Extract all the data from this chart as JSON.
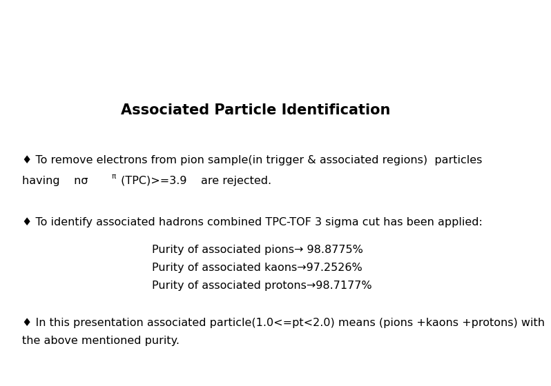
{
  "title": "Associated Particle Identification",
  "title_fontsize": 15,
  "title_fontweight": "bold",
  "background_color": "#ffffff",
  "text_color": "#000000",
  "bullet1_line1": "♦ To remove electrons from pion sample(in trigger & associated regions)  particles",
  "bullet1_line2_part1": "having    nσ",
  "bullet1_line2_sup": "π",
  "bullet1_line2_part2": " (TPC)>=3.9    are rejected.",
  "bullet2": "♦ To identify associated hadrons combined TPC-TOF 3 sigma cut has been applied:",
  "purity1": "Purity of associated pions→ 98.8775%",
  "purity2": "Purity of associated kaons→97.2526%",
  "purity3": "Purity of associated protons→98.7177%",
  "bullet3_line1": "♦ In this presentation associated particle(1.0<=pt<2.0) means (pions +kaons +protons) with",
  "bullet3_line2": "the above mentioned purity.",
  "font_family": "DejaVu Sans",
  "body_fontsize": 11.5
}
